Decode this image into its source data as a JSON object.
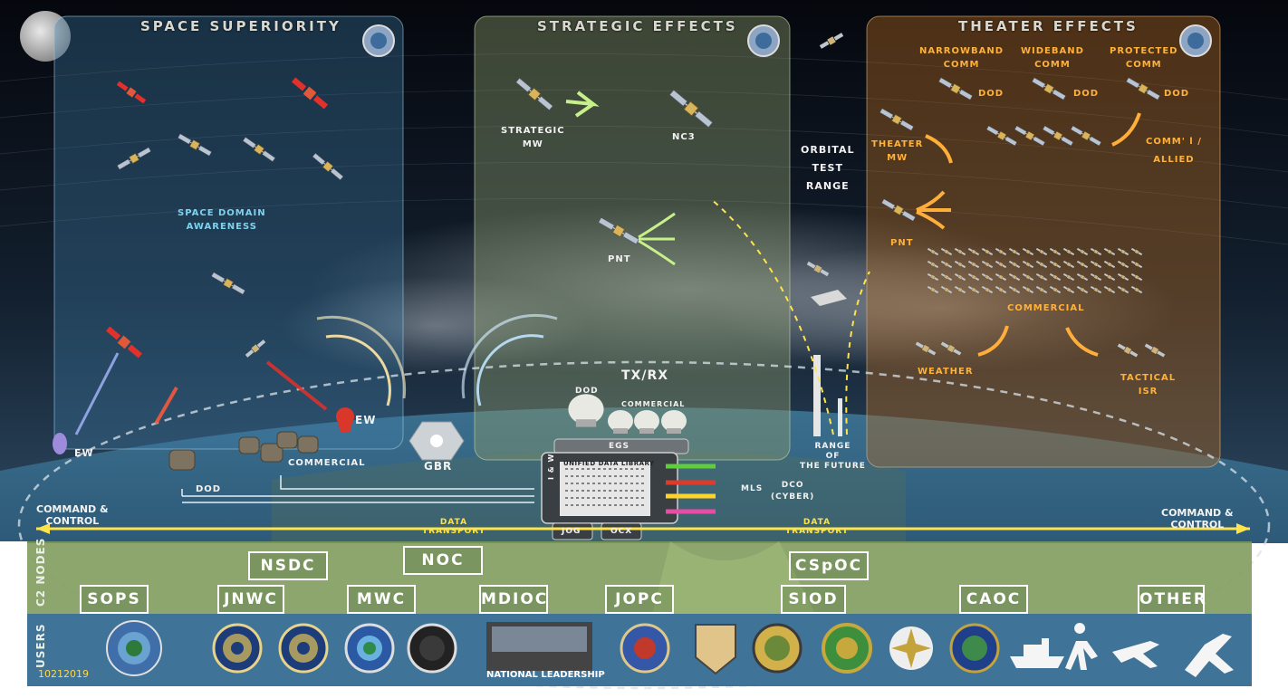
{
  "panels": {
    "space_superiority": "SPACE SUPERIORITY",
    "strategic_effects": "STRATEGIC EFFECTS",
    "theater_effects": "THEATER EFFECTS"
  },
  "labels": {
    "space_domain_awareness": "SPACE DOMAIN\nAWARENESS",
    "ew_right": "EW",
    "ew_left": "EW",
    "dod_ground": "DOD",
    "commercial_ground": "COMMERCIAL",
    "gbr": "GBR",
    "strategic_mw": "STRATEGIC\nMW",
    "nc3": "NC3",
    "pnt_strategic": "PNT",
    "tx_rx": "TX/RX",
    "dod_antenna": "DOD",
    "commercial_antenna": "COMMERCIAL",
    "egs": "EGS",
    "unified_data_library": "UNIFIED DATA LIBRARY",
    "i_and_w": "I & W",
    "mls": "MLS",
    "jog": "JOG",
    "ocx": "OCX",
    "dco_cyber": "DCO\n(CYBER)",
    "orbital_test_range": "ORBITAL\nTEST\nRANGE",
    "range_of_the_future": "RANGE\nOF\nTHE FUTURE",
    "narrowband_comm": "NARROWBAND\nCOMM",
    "wideband_comm": "WIDEBAND\nCOMM",
    "protected_comm": "PROTECTED\nCOMM",
    "dod_1": "DOD",
    "dod_2": "DOD",
    "dod_3": "DOD",
    "theater_mw": "THEATER\nMW",
    "comml_allied": "COMM' l /\nALLIED",
    "pnt_theater": "PNT",
    "commercial_theater": "COMMERCIAL",
    "weather": "WEATHER",
    "tactical_isr": "TACTICAL\nISR",
    "command_control_left": "COMMAND &\nCONTROL",
    "command_control_right": "COMMAND &\nCONTROL",
    "data_transport_left": "DATA\nTRANSPORT",
    "data_transport_right": "DATA\nTRANSPORT"
  },
  "c2_nodes": {
    "side_label": "C2 NODES",
    "nodes": [
      "SOPS",
      "JNWC",
      "NSDC",
      "MWC",
      "NOC",
      "MDIOC",
      "JOPC",
      "CSpOC",
      "SIOD",
      "CAOC",
      "OTHER"
    ]
  },
  "users": {
    "side_label": "USERS",
    "national_leadership": "NATIONAL LEADERSHIP",
    "date_code": "10212019"
  },
  "colors": {
    "space_bg": "#0a1220",
    "panel_blue": "#3f7fa8",
    "panel_green": "#8a9a6c",
    "panel_orange": "#b06a22",
    "c2_band": "#7d9a5a",
    "users_band": "#3f7397",
    "accent_yellow": "#ffe34a",
    "accent_orange": "#ffb13a"
  },
  "icons": [
    "satellite-icon",
    "moon-icon",
    "globe-seal-icon",
    "antenna-dome-icon",
    "rocket-icon",
    "ship-icon",
    "soldier-icon",
    "jet-icon",
    "space-plane-icon"
  ]
}
